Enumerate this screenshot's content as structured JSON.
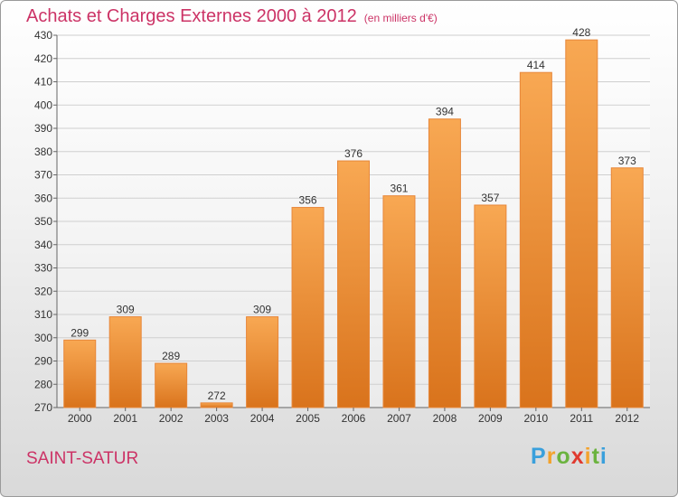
{
  "chart_data": {
    "type": "bar",
    "title": "Achats et Charges Externes 2000 à 2012",
    "subtitle": "(en milliers d'€)",
    "categories": [
      "2000",
      "2001",
      "2002",
      "2003",
      "2004",
      "2005",
      "2006",
      "2007",
      "2008",
      "2009",
      "2010",
      "2011",
      "2012"
    ],
    "values": [
      299,
      309,
      289,
      272,
      309,
      356,
      376,
      361,
      394,
      357,
      414,
      428,
      373
    ],
    "ylim": [
      270,
      430
    ],
    "yticks": [
      270,
      280,
      290,
      300,
      310,
      320,
      330,
      340,
      350,
      360,
      370,
      380,
      390,
      400,
      410,
      420,
      430
    ],
    "grid": true,
    "bar_color": "#f0943a"
  },
  "footer": {
    "commune": "SAINT-SATUR",
    "logo_letters": [
      "P",
      "r",
      "o",
      "x",
      "i",
      "t",
      "i"
    ],
    "logo_colors": [
      "#3aa0dc",
      "#f3a22c",
      "#6bb33f",
      "#e03a2f",
      "#f3a22c",
      "#6bb33f",
      "#3aa0dc"
    ]
  }
}
